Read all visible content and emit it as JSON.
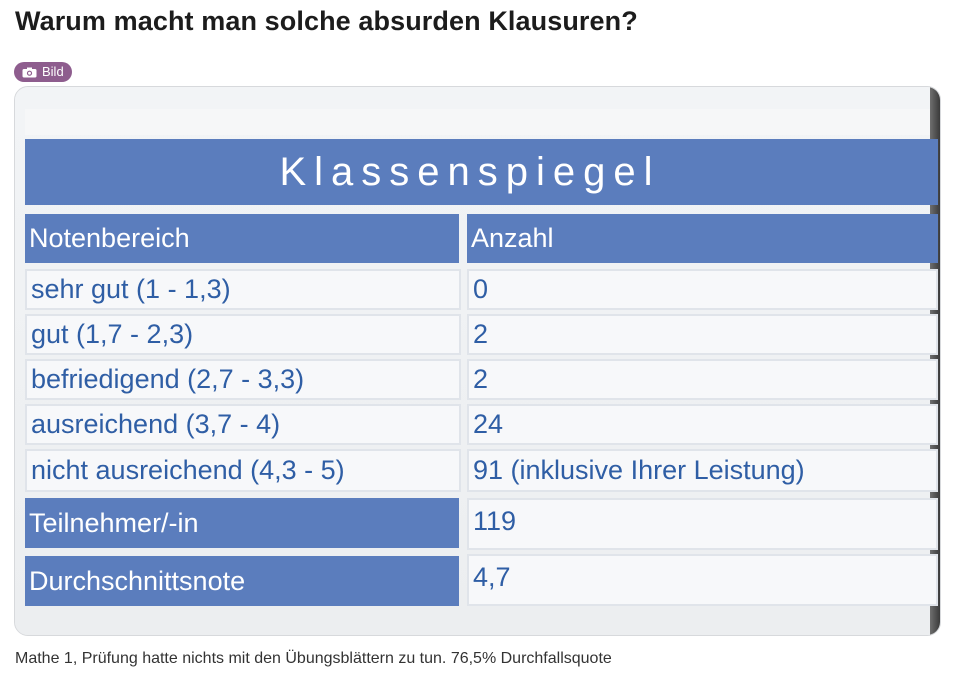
{
  "post": {
    "title": "Warum macht man solche absurden Klausuren?",
    "flair": {
      "icon": "camera-icon",
      "label": "Bild",
      "color": "#8e5d8e"
    },
    "caption": "Mathe 1, Prüfung hatte nichts mit den Übungsblättern zu tun. 76,5% Durchfallsquote"
  },
  "image": {
    "title": "Klassenspiegel",
    "headers": {
      "col1": "Notenbereich",
      "col2": "Anzahl"
    },
    "rows": [
      {
        "range": "sehr gut (1 - 1,3)",
        "count": "0"
      },
      {
        "range": "gut (1,7 - 2,3)",
        "count": "2"
      },
      {
        "range": "befriedigend (2,7 - 3,3)",
        "count": "2"
      },
      {
        "range": "ausreichend (3,7 - 4)",
        "count": "24"
      },
      {
        "range": "nicht ausreichend (4,3 - 5)",
        "count": "91 (inklusive Ihrer Leistung)"
      }
    ],
    "summary": [
      {
        "label": "Teilnehmer/-in",
        "value": "119"
      },
      {
        "label": "Durchschnittsnote",
        "value": "4,7"
      }
    ],
    "colors": {
      "header_blue": "#5b7dbd",
      "text_blue": "#2f5ea5"
    }
  }
}
